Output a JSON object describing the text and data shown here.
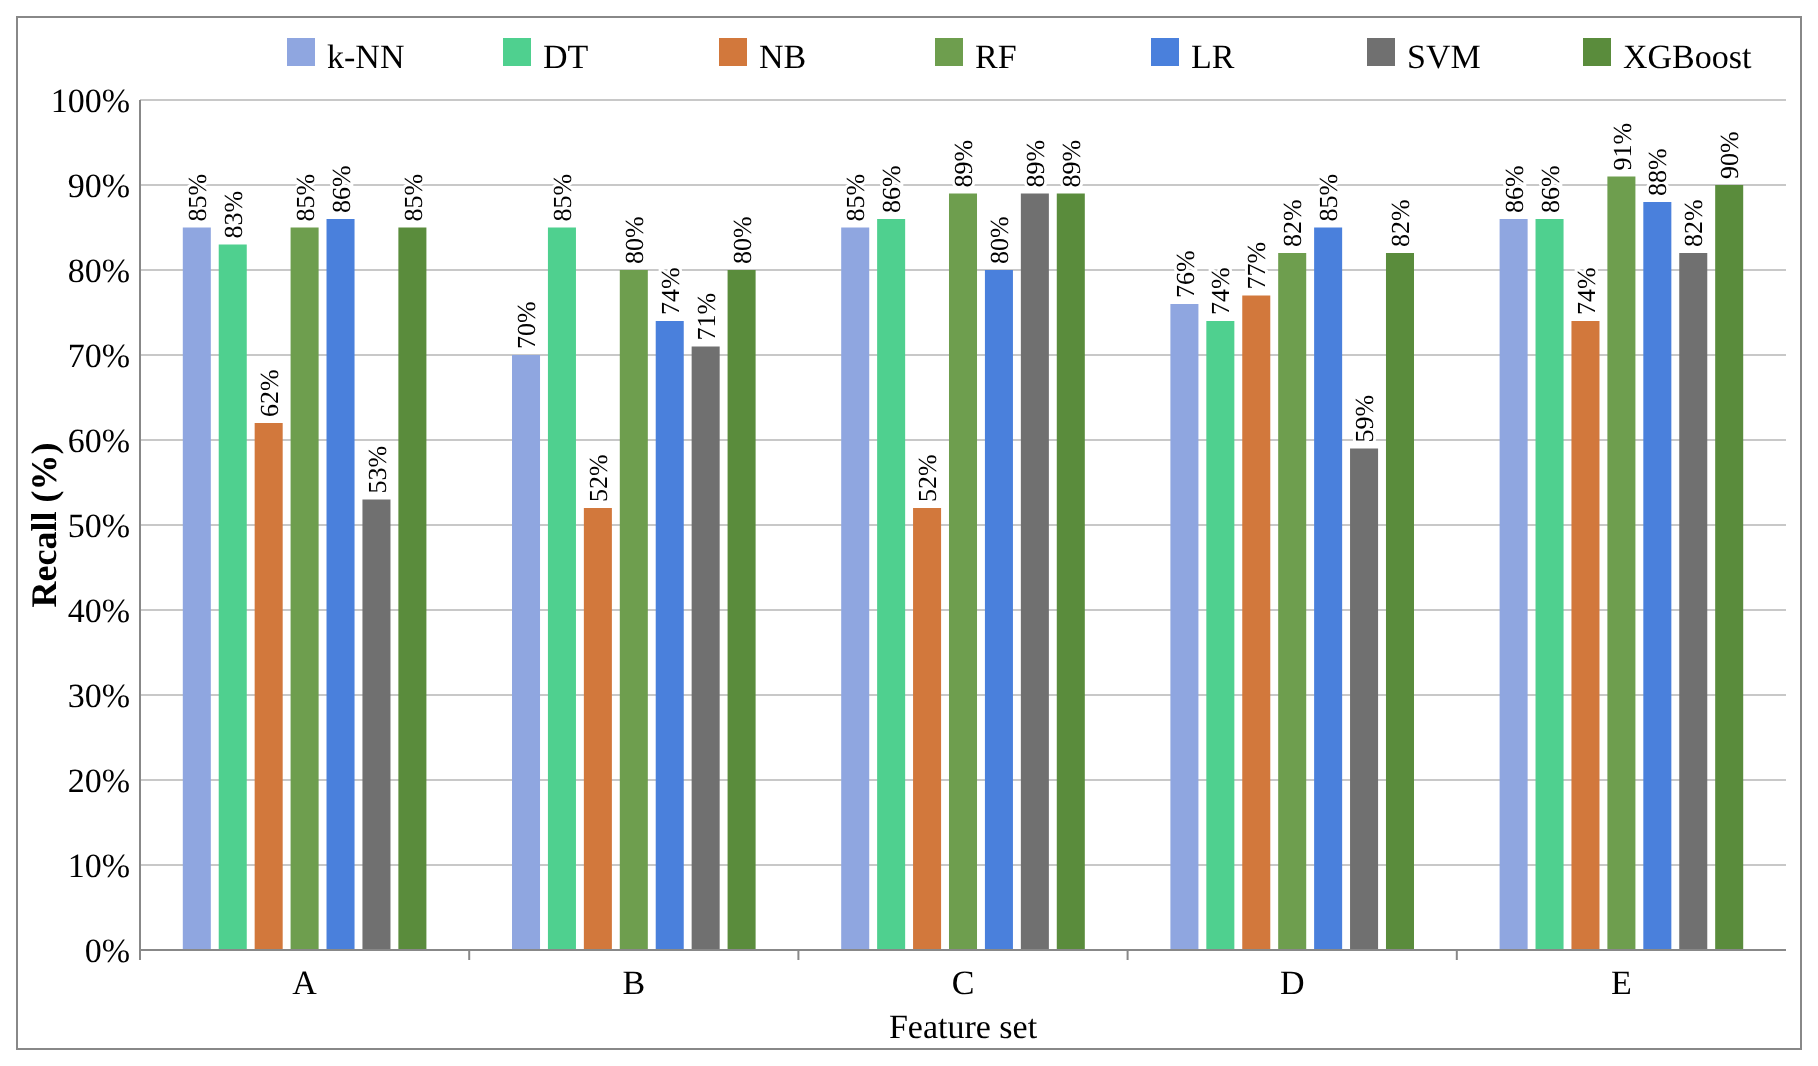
{
  "chart_data": {
    "type": "bar",
    "xlabel": "Feature set",
    "ylabel": "Recall (%)",
    "categories": [
      "A",
      "B",
      "C",
      "D",
      "E"
    ],
    "series": [
      {
        "name": "k-NN",
        "color": "#8fa6e0",
        "values": [
          85,
          70,
          85,
          76,
          86
        ],
        "value_labels": [
          "85%",
          "70%",
          "85%",
          "76%",
          "86%"
        ]
      },
      {
        "name": "DT",
        "color": "#4fd08f",
        "values": [
          83,
          85,
          86,
          74,
          86
        ],
        "value_labels": [
          "83%",
          "85%",
          "86%",
          "74%",
          "86%"
        ]
      },
      {
        "name": "NB",
        "color": "#d2783c",
        "values": [
          62,
          52,
          52,
          77,
          74
        ],
        "value_labels": [
          "62%",
          "52%",
          "52%",
          "77%",
          "74%"
        ]
      },
      {
        "name": "RF",
        "color": "#6e9e4e",
        "values": [
          85,
          80,
          89,
          82,
          91
        ],
        "value_labels": [
          "85%",
          "80%",
          "89%",
          "82%",
          "91%"
        ]
      },
      {
        "name": "LR",
        "color": "#4a80dc",
        "values": [
          86,
          74,
          80,
          85,
          88
        ],
        "value_labels": [
          "86%",
          "74%",
          "80%",
          "85%",
          "88%"
        ]
      },
      {
        "name": "SVM",
        "color": "#707070",
        "values": [
          53,
          71,
          89,
          59,
          82
        ],
        "value_labels": [
          "53%",
          "71%",
          "89%",
          "59%",
          "82%"
        ]
      },
      {
        "name": "XGBoost",
        "color": "#5a8c3c",
        "values": [
          85,
          80,
          89,
          82,
          90
        ],
        "value_labels": [
          "85%",
          "80%",
          "89%",
          "82%",
          "90%"
        ]
      }
    ],
    "ylim": [
      0,
      100
    ],
    "yticks": [
      {
        "value": 0,
        "label": "0%"
      },
      {
        "value": 10,
        "label": "10%"
      },
      {
        "value": 20,
        "label": "20%"
      },
      {
        "value": 30,
        "label": "30%"
      },
      {
        "value": 40,
        "label": "40%"
      },
      {
        "value": 50,
        "label": "50%"
      },
      {
        "value": 60,
        "label": "60%"
      },
      {
        "value": 70,
        "label": "70%"
      },
      {
        "value": 80,
        "label": "80%"
      },
      {
        "value": 90,
        "label": "90%"
      },
      {
        "value": 100,
        "label": "100%"
      }
    ],
    "grid": "y",
    "legend": "top"
  }
}
